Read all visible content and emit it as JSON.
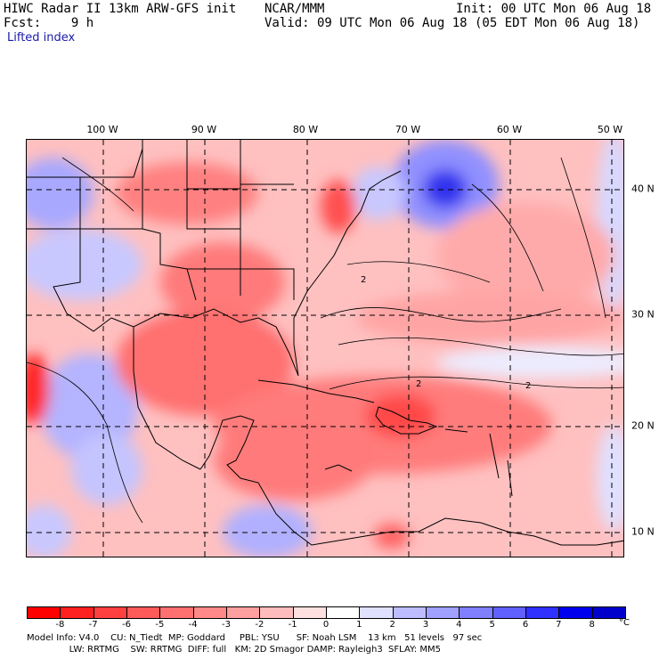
{
  "header": {
    "line1_left": "HIWC Radar II 13km ARW-GFS init",
    "line1_mid": "NCAR/MMM",
    "line1_right": "Init: 00 UTC Mon 06 Aug 18",
    "line2_left": "Fcst:    9 h",
    "line2_right": "Valid: 09 UTC Mon 06 Aug 18 (05 EDT Mon 06 Aug 18)",
    "field": "Lifted index"
  },
  "map": {
    "lon_labels": [
      "100 W",
      "90 W",
      "80 W",
      "70 W",
      "60 W",
      "50 W"
    ],
    "lat_labels": [
      "40 N",
      "30 N",
      "20 N",
      "10 N"
    ],
    "contour_label": "2",
    "colors": {
      "neg_strong": "#ff3030",
      "neg_mid": "#ff7878",
      "neg_light": "#ffb4b4",
      "neutral": "#ffe4e4",
      "pos_light": "#c8c8ff",
      "pos_mid": "#8080ff",
      "pos_strong": "#2020ee",
      "ocean_base": "#ffcccc",
      "land_base": "#ffa0a0"
    }
  },
  "colorbar": {
    "labels": [
      "-8",
      "-7",
      "-6",
      "-5",
      "-4",
      "-3",
      "-2",
      "-1",
      "0",
      "1",
      "2",
      "3",
      "4",
      "5",
      "6",
      "7",
      "8"
    ],
    "unit": "°C",
    "colors": [
      "#ff0000",
      "#ff2020",
      "#ff4040",
      "#ff5a5a",
      "#ff7070",
      "#ff8888",
      "#ffa0a0",
      "#ffbcbc",
      "#ffe0e0",
      "#ffffff",
      "#e0e0ff",
      "#bcbcff",
      "#a0a0ff",
      "#8080ff",
      "#6060ff",
      "#3030ff",
      "#0000ee",
      "#0000cc"
    ]
  },
  "footer": {
    "line1": "Model Info: V4.0    CU: N_Tiedt  MP: Goddard     PBL: YSU      SF: Noah LSM    13 km   51 levels   97 sec",
    "line2": "               LW: RRTMG    SW: RRTMG  DIFF: full   KM: 2D Smagor DAMP: Rayleigh3  SFLAY: MM5"
  }
}
